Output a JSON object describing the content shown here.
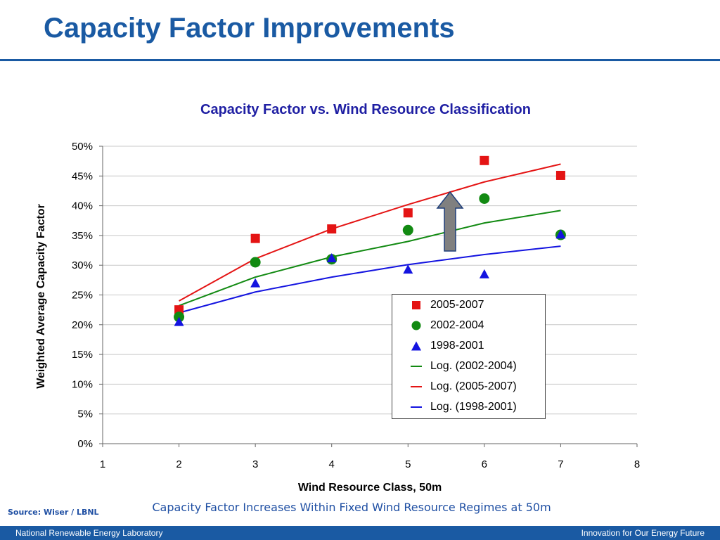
{
  "slide": {
    "title": "Capacity Factor Improvements",
    "caption": "Capacity Factor Increases Within Fixed Wind Resource Regimes at 50m",
    "source": "Source: Wiser / LBNL"
  },
  "footer": {
    "left": "National Renewable Energy Laboratory",
    "right": "Innovation for Our Energy Future"
  },
  "colors": {
    "brand": "#1a5aa3",
    "series_2005_2007": "#e41414",
    "series_2002_2004": "#128a12",
    "series_1998_2001": "#1414e0",
    "arrow": "#808080"
  },
  "icons": {
    "arrow": "up-arrow-icon"
  },
  "chart_data": {
    "type": "scatter",
    "title": "Capacity Factor vs. Wind Resource Classification",
    "xlabel": "Wind Resource Class, 50m",
    "ylabel": "Weighted Average Capacity Factor",
    "xlim": [
      1,
      8
    ],
    "ylim": [
      0,
      0.5
    ],
    "x_ticks": [
      "1",
      "2",
      "3",
      "4",
      "5",
      "6",
      "7",
      "8"
    ],
    "y_ticks": [
      "0%",
      "5%",
      "10%",
      "15%",
      "20%",
      "25%",
      "30%",
      "35%",
      "40%",
      "45%",
      "50%"
    ],
    "grid": true,
    "legend_position": "lower-right",
    "series": [
      {
        "name": "2005-2007",
        "marker": "square",
        "color": "#e41414",
        "x": [
          2,
          3,
          4,
          5,
          6,
          7
        ],
        "y": [
          0.225,
          0.345,
          0.361,
          0.388,
          0.476,
          0.451
        ]
      },
      {
        "name": "2002-2004",
        "marker": "circle",
        "color": "#128a12",
        "x": [
          2,
          3,
          4,
          5,
          6,
          7
        ],
        "y": [
          0.213,
          0.305,
          0.31,
          0.359,
          0.412,
          0.351
        ]
      },
      {
        "name": "1998-2001",
        "marker": "triangle",
        "color": "#1414e0",
        "x": [
          2,
          3,
          4,
          5,
          6,
          7
        ],
        "y": [
          0.205,
          0.27,
          0.312,
          0.293,
          0.285,
          0.352
        ]
      }
    ],
    "trendlines": [
      {
        "name": "Log. (2002-2004)",
        "color": "#128a12",
        "x": [
          2,
          3,
          4,
          5,
          6,
          7
        ],
        "y": [
          0.232,
          0.28,
          0.314,
          0.34,
          0.371,
          0.392
        ]
      },
      {
        "name": "Log. (2005-2007)",
        "color": "#e41414",
        "x": [
          2,
          3,
          4,
          5,
          6,
          7
        ],
        "y": [
          0.24,
          0.311,
          0.361,
          0.402,
          0.44,
          0.47
        ]
      },
      {
        "name": "Log. (1998-2001)",
        "color": "#1414e0",
        "x": [
          2,
          3,
          4,
          5,
          6,
          7
        ],
        "y": [
          0.22,
          0.255,
          0.28,
          0.301,
          0.318,
          0.332
        ]
      }
    ],
    "legend": [
      "2005-2007",
      "2002-2004",
      "1998-2001",
      "Log. (2002-2004)",
      "Log. (2005-2007)",
      "Log. (1998-2001)"
    ]
  }
}
